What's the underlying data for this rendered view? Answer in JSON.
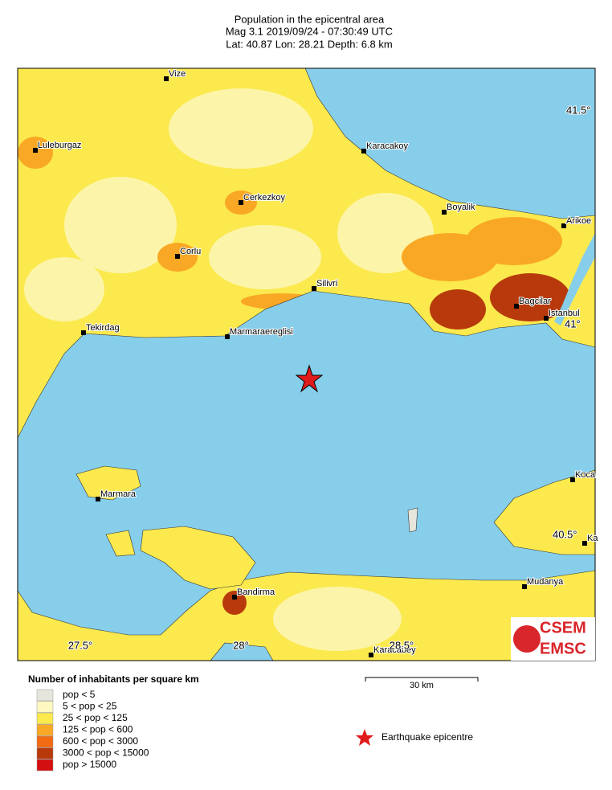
{
  "header": {
    "title": "Population in the epicentral area",
    "line1": "Mag 3.1  2019/09/24 - 07:30:49 UTC",
    "line2": "Lat: 40.87    Lon:  28.21     Depth:  6.8 km"
  },
  "map": {
    "cities": [
      "Vize",
      "Luleburgaz",
      "Karacakoy",
      "Cerkezkoy",
      "Boyalik",
      "Arikoe",
      "Corlu",
      "Silivri",
      "Bagcilar",
      "Istanbul",
      "Tekirdag",
      "Marmaraereglisi",
      "Marmara",
      "Koca",
      "Ka",
      "Mudanya",
      "Bandirma",
      "Karacabey"
    ],
    "lat_labels": [
      "41.5°",
      "41°",
      "40.5°"
    ],
    "lon_labels": [
      "27.5°",
      "28°",
      "28.5°"
    ],
    "scale": "30 km"
  },
  "logo": {
    "top": "CSEM",
    "bottom": "EMSC"
  },
  "legend": {
    "title": "Number of inhabitants per square km",
    "items": [
      {
        "label": "pop < 5",
        "color": "#e6e6dc"
      },
      {
        "label": "5 < pop < 25",
        "color": "#fdf8c0"
      },
      {
        "label": "25 < pop < 125",
        "color": "#fbe94e"
      },
      {
        "label": "125 < pop < 600",
        "color": "#f9a825"
      },
      {
        "label": "600 < pop < 3000",
        "color": "#f26a11"
      },
      {
        "label": "3000 < pop < 15000",
        "color": "#b83a0c"
      },
      {
        "label": "pop > 15000",
        "color": "#d40f0f"
      }
    ]
  },
  "epicentre": "Earthquake epicentre"
}
